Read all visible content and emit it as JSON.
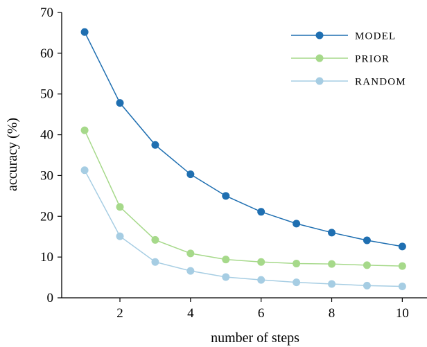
{
  "chart_data": {
    "type": "line",
    "x": [
      1,
      2,
      3,
      4,
      5,
      6,
      7,
      8,
      9,
      10
    ],
    "series": [
      {
        "name": "MODEL",
        "color": "#1f6fb1",
        "values": [
          65.2,
          47.8,
          37.5,
          30.3,
          25.0,
          21.1,
          18.2,
          16.0,
          14.1,
          12.6
        ]
      },
      {
        "name": "PRIOR",
        "color": "#a6d98a",
        "values": [
          41.1,
          22.3,
          14.2,
          10.9,
          9.4,
          8.8,
          8.4,
          8.3,
          8.0,
          7.8
        ]
      },
      {
        "name": "RANDOM",
        "color": "#a6cde3",
        "values": [
          31.3,
          15.1,
          8.8,
          6.6,
          5.1,
          4.4,
          3.8,
          3.4,
          3.0,
          2.8
        ]
      }
    ],
    "xlabel": "number of steps",
    "ylabel": "accuracy (%)",
    "xlim": [
      0.35,
      10.7
    ],
    "ylim": [
      0,
      70
    ],
    "xticks": [
      2,
      4,
      6,
      8,
      10
    ],
    "yticks": [
      0,
      10,
      20,
      30,
      40,
      50,
      60,
      70
    ],
    "legend_position": "top-right",
    "grid": false
  }
}
